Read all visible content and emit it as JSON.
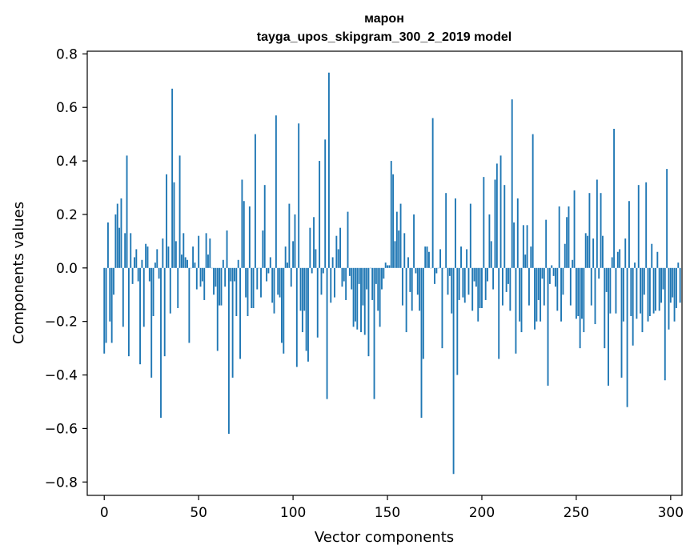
{
  "chart_data": {
    "type": "bar",
    "title_line1": "марон",
    "title_line2": "tayga_upos_skipgram_300_2_2019 model",
    "xlabel": "Vector components",
    "ylabel": "Components values",
    "xlim": [
      -9,
      306
    ],
    "ylim": [
      -0.85,
      0.81
    ],
    "x_ticks": [
      0,
      50,
      100,
      150,
      200,
      250,
      300
    ],
    "y_ticks": [
      -0.8,
      -0.6,
      -0.4,
      -0.2,
      0.0,
      0.2,
      0.4,
      0.6,
      0.8
    ],
    "y_tick_labels": [
      "−0.8",
      "−0.6",
      "−0.4",
      "−0.2",
      "0.0",
      "0.2",
      "0.4",
      "0.6",
      "0.8"
    ],
    "bar_color": "#1f77b4",
    "values": [
      -0.32,
      -0.28,
      0.17,
      -0.2,
      -0.28,
      -0.1,
      0.2,
      0.24,
      0.15,
      0.26,
      -0.22,
      0.13,
      0.42,
      -0.33,
      0.13,
      -0.06,
      0.04,
      0.07,
      -0.05,
      -0.36,
      0.03,
      -0.22,
      0.09,
      0.08,
      -0.05,
      -0.41,
      -0.18,
      0.02,
      0.07,
      -0.04,
      -0.56,
      0.11,
      -0.33,
      0.35,
      0.08,
      -0.17,
      0.67,
      0.32,
      0.1,
      -0.15,
      0.42,
      0.05,
      0.13,
      0.04,
      0.03,
      -0.28,
      0.0,
      0.08,
      0.02,
      -0.08,
      0.12,
      -0.07,
      -0.05,
      -0.12,
      0.13,
      0.05,
      0.11,
      0.0,
      -0.1,
      -0.07,
      -0.31,
      -0.14,
      -0.14,
      0.03,
      -0.07,
      0.14,
      -0.62,
      -0.05,
      -0.41,
      -0.05,
      -0.18,
      0.03,
      -0.34,
      0.33,
      0.25,
      -0.11,
      -0.18,
      0.23,
      -0.15,
      -0.15,
      0.5,
      -0.08,
      0.0,
      -0.11,
      0.14,
      0.31,
      -0.05,
      -0.02,
      0.04,
      -0.13,
      -0.17,
      0.57,
      -0.1,
      -0.11,
      -0.28,
      -0.32,
      0.08,
      0.02,
      0.24,
      -0.07,
      0.1,
      0.2,
      -0.37,
      0.54,
      -0.16,
      -0.24,
      -0.16,
      -0.31,
      -0.35,
      0.15,
      -0.02,
      0.19,
      0.07,
      -0.26,
      0.4,
      -0.1,
      -0.02,
      0.48,
      -0.49,
      0.73,
      -0.13,
      0.04,
      -0.11,
      0.12,
      0.07,
      0.15,
      -0.07,
      -0.05,
      -0.12,
      0.21,
      -0.03,
      -0.08,
      -0.22,
      -0.2,
      -0.23,
      -0.06,
      -0.24,
      -0.14,
      -0.25,
      -0.08,
      -0.33,
      0.0,
      -0.12,
      -0.49,
      -0.06,
      -0.16,
      -0.22,
      -0.08,
      -0.04,
      0.02,
      0.01,
      0.01,
      0.4,
      0.35,
      0.1,
      0.21,
      0.14,
      0.24,
      -0.14,
      0.13,
      -0.24,
      0.04,
      -0.09,
      -0.16,
      0.2,
      -0.02,
      -0.1,
      -0.16,
      -0.56,
      -0.34,
      0.08,
      0.08,
      0.06,
      0.0,
      0.56,
      -0.06,
      -0.02,
      0.0,
      0.07,
      -0.3,
      0.0,
      0.28,
      -0.1,
      -0.03,
      -0.17,
      -0.77,
      0.26,
      -0.4,
      -0.12,
      0.08,
      -0.11,
      -0.13,
      0.07,
      -0.1,
      0.24,
      -0.16,
      -0.05,
      -0.07,
      -0.2,
      -0.15,
      -0.15,
      0.34,
      -0.12,
      -0.05,
      0.2,
      0.1,
      -0.08,
      0.33,
      0.39,
      -0.34,
      0.42,
      -0.14,
      0.31,
      -0.09,
      -0.06,
      -0.16,
      0.63,
      0.17,
      -0.32,
      0.26,
      -0.2,
      -0.24,
      0.16,
      0.05,
      0.16,
      -0.14,
      0.08,
      0.5,
      -0.23,
      -0.2,
      -0.12,
      -0.2,
      -0.04,
      -0.14,
      0.18,
      -0.44,
      -0.06,
      0.01,
      -0.03,
      -0.07,
      -0.16,
      0.23,
      -0.2,
      -0.1,
      0.09,
      0.19,
      0.23,
      -0.14,
      0.03,
      0.29,
      -0.19,
      -0.18,
      -0.3,
      -0.19,
      -0.24,
      0.13,
      0.12,
      0.28,
      -0.14,
      0.11,
      -0.21,
      0.33,
      -0.04,
      0.28,
      0.12,
      -0.3,
      -0.09,
      -0.44,
      -0.17,
      0.04,
      0.52,
      -0.17,
      0.06,
      0.07,
      -0.41,
      -0.2,
      0.11,
      -0.52,
      0.25,
      -0.18,
      -0.29,
      0.02,
      -0.19,
      0.31,
      -0.17,
      -0.24,
      -0.1,
      0.32,
      -0.2,
      -0.18,
      0.09,
      -0.17,
      -0.16,
      0.06,
      -0.16,
      -0.13,
      -0.08,
      -0.42,
      0.37,
      -0.23,
      -0.13,
      -0.11,
      -0.2,
      -0.15,
      0.02,
      -0.13
    ]
  }
}
